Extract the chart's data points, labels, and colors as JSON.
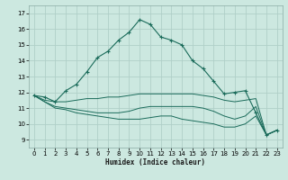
{
  "xlabel": "Humidex (Indice chaleur)",
  "bg_color": "#cce8e0",
  "grid_color": "#b0cfc8",
  "line_color": "#1a6b5a",
  "ylim": [
    8.5,
    17.5
  ],
  "xlim": [
    -0.5,
    23.5
  ],
  "yticks": [
    9,
    10,
    11,
    12,
    13,
    14,
    15,
    16,
    17
  ],
  "xticks": [
    0,
    1,
    2,
    3,
    4,
    5,
    6,
    7,
    8,
    9,
    10,
    11,
    12,
    13,
    14,
    15,
    16,
    17,
    18,
    19,
    20,
    21,
    22,
    23
  ],
  "curve1_x": [
    0,
    1,
    2,
    3,
    4,
    5,
    6,
    7,
    8,
    9,
    10,
    11,
    12,
    13,
    14,
    15,
    16,
    17,
    18,
    19,
    20,
    21,
    22,
    23
  ],
  "curve1_y": [
    11.8,
    11.7,
    11.4,
    12.1,
    12.5,
    13.3,
    14.2,
    14.6,
    15.3,
    15.8,
    16.6,
    16.3,
    15.5,
    15.3,
    15.0,
    14.0,
    13.5,
    12.7,
    11.9,
    12.0,
    12.1,
    10.7,
    9.3,
    9.6
  ],
  "curve2_x": [
    0,
    1,
    2,
    3,
    4,
    5,
    6,
    7,
    8,
    9,
    10,
    11,
    12,
    13,
    14,
    15,
    16,
    17,
    18,
    19,
    20,
    21,
    22,
    23
  ],
  "curve2_y": [
    11.8,
    11.5,
    11.4,
    11.4,
    11.5,
    11.6,
    11.6,
    11.7,
    11.7,
    11.8,
    11.9,
    11.9,
    11.9,
    11.9,
    11.9,
    11.9,
    11.8,
    11.7,
    11.5,
    11.4,
    11.5,
    11.6,
    9.3,
    9.6
  ],
  "curve3_x": [
    0,
    1,
    2,
    3,
    4,
    5,
    6,
    7,
    8,
    9,
    10,
    11,
    12,
    13,
    14,
    15,
    16,
    17,
    18,
    19,
    20,
    21,
    22,
    23
  ],
  "curve3_y": [
    11.8,
    11.4,
    11.1,
    11.0,
    10.9,
    10.8,
    10.7,
    10.7,
    10.7,
    10.8,
    11.0,
    11.1,
    11.1,
    11.1,
    11.1,
    11.1,
    11.0,
    10.8,
    10.5,
    10.3,
    10.5,
    11.1,
    9.3,
    9.6
  ],
  "curve4_x": [
    0,
    1,
    2,
    3,
    4,
    5,
    6,
    7,
    8,
    9,
    10,
    11,
    12,
    13,
    14,
    15,
    16,
    17,
    18,
    19,
    20,
    21,
    22,
    23
  ],
  "curve4_y": [
    11.8,
    11.4,
    11.0,
    10.9,
    10.7,
    10.6,
    10.5,
    10.4,
    10.3,
    10.3,
    10.3,
    10.4,
    10.5,
    10.5,
    10.3,
    10.2,
    10.1,
    10.0,
    9.8,
    9.8,
    10.0,
    10.5,
    9.3,
    9.6
  ]
}
